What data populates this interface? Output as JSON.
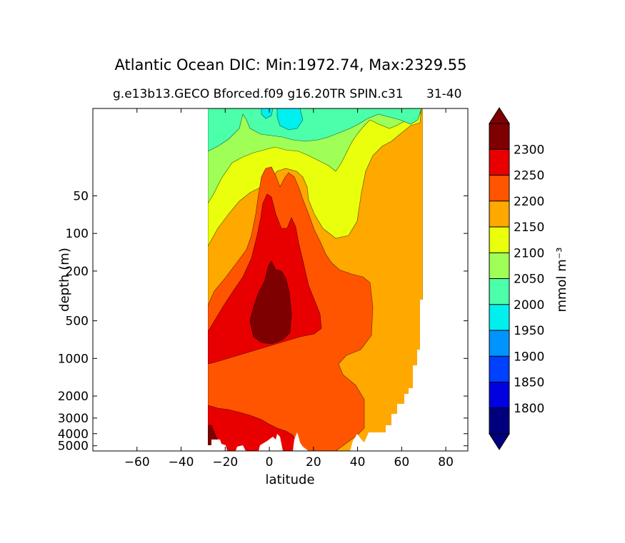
{
  "chart_data": {
    "type": "contour",
    "title": "Atlantic Ocean DIC: Min:1972.74, Max:2329.55",
    "subtitle_left": "g.e13b13.GECO Bforced.f09 g16.20TR SPIN.c31",
    "subtitle_right": "31-40",
    "xlabel": "latitude",
    "ylabel": "depth (m)",
    "colorbar_label": "mmol m⁻³",
    "xlim": [
      -80,
      90
    ],
    "ylim_depth": [
      5500,
      10
    ],
    "yscale": "log",
    "xticks": [
      -60,
      -40,
      -20,
      0,
      20,
      40,
      60,
      80
    ],
    "xtick_labels": [
      "−60",
      "−40",
      "−20",
      "0",
      "20",
      "40",
      "60",
      "80"
    ],
    "yticks": [
      50,
      100,
      200,
      500,
      1000,
      2000,
      3000,
      4000,
      5000
    ],
    "ytick_labels": [
      "50",
      "100",
      "200",
      "500",
      "1000",
      "2000",
      "3000",
      "4000",
      "5000"
    ],
    "data_extent_latitude": [
      -34,
      68
    ],
    "levels": [
      1800,
      1850,
      1900,
      1950,
      2000,
      2050,
      2100,
      2150,
      2200,
      2250,
      2300
    ],
    "level_labels": [
      "1800",
      "1850",
      "1900",
      "1950",
      "2000",
      "2050",
      "2100",
      "2150",
      "2200",
      "2250",
      "2300"
    ],
    "colors": [
      "#00007f",
      "#0000e0",
      "#0040ff",
      "#0094ff",
      "#00efef",
      "#4cffaa",
      "#a0ff56",
      "#e9ff0c",
      "#ffa800",
      "#ff5500",
      "#e80000",
      "#7f0000"
    ],
    "extend": "both",
    "value_range": [
      1972.74,
      2329.55
    ],
    "grid": false
  }
}
